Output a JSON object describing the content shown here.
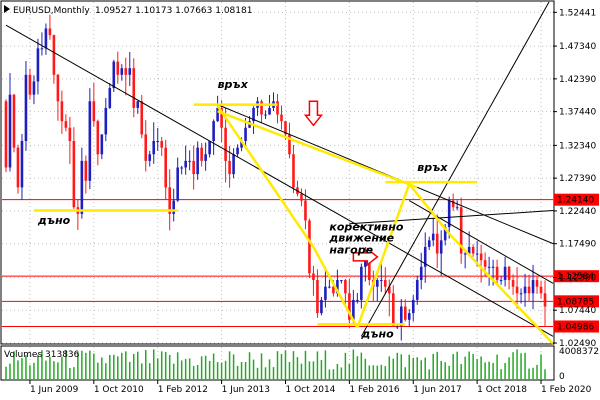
{
  "header": {
    "symbol": "EURUSD,Monthly",
    "ohlc": "1.09527 1.10173 1.07663 1.08181"
  },
  "volume_label": "Volumes 313836",
  "colors": {
    "bull": "#1f1fbf",
    "bear": "#ff1a1a",
    "annotation": "#ffea00",
    "trend": "#000000",
    "hline": "#ff0000",
    "grid": "#c0c0c0",
    "volume": "#22aa22"
  },
  "chart_data": {
    "type": "candlestick",
    "title": "EURUSD,Monthly",
    "ylim": [
      1.0249,
      1.54
    ],
    "y_ticks": [
      "1.52441",
      "1.47340",
      "1.42390",
      "1.37440",
      "1.32340",
      "1.27390",
      "1.22440",
      "1.17490",
      "1.12390",
      "1.07440",
      "1.02490"
    ],
    "x_ticks": [
      "1 Jun 2009",
      "1 Oct 2010",
      "1 Feb 2012",
      "1 Jun 2013",
      "1 Oct 2014",
      "1 Feb 2016",
      "1 Jun 2017",
      "1 Oct 2018",
      "1 Feb 2020"
    ],
    "x_range": [
      "2008-11",
      "2020-05"
    ],
    "price_levels": [
      {
        "value": 1.2414,
        "label": "1.24140"
      },
      {
        "value": 1.12584,
        "label": "1.12584"
      },
      {
        "value": 1.08785,
        "label": "1.08785"
      },
      {
        "value": 1.04986,
        "label": "1.04986"
      }
    ],
    "volume_axis_max": "4008372",
    "volume_axis_zero": "0",
    "annotations": [
      {
        "text": "връх",
        "date": "2013-05",
        "price": 1.41
      },
      {
        "text": "дъно",
        "date": "2009-08",
        "price": 1.205
      },
      {
        "text": "връх",
        "date": "2017-07",
        "price": 1.285
      },
      {
        "text": "корективно",
        "date": "2015-09",
        "price": 1.195
      },
      {
        "text": "движение",
        "date": "2015-09",
        "price": 1.178
      },
      {
        "text": "нагоре",
        "date": "2015-09",
        "price": 1.16
      },
      {
        "text": "дъно",
        "date": "2016-05",
        "price": 1.033
      }
    ],
    "closes_monthly": [
      1.29,
      1.4,
      1.32,
      1.26,
      1.33,
      1.43,
      1.4,
      1.42,
      1.47,
      1.47,
      1.5,
      1.49,
      1.43,
      1.39,
      1.36,
      1.35,
      1.33,
      1.23,
      1.22,
      1.3,
      1.27,
      1.39,
      1.36,
      1.31,
      1.34,
      1.38,
      1.41,
      1.45,
      1.43,
      1.44,
      1.43,
      1.44,
      1.38,
      1.39,
      1.34,
      1.3,
      1.31,
      1.33,
      1.33,
      1.32,
      1.26,
      1.22,
      1.24,
      1.29,
      1.29,
      1.3,
      1.3,
      1.28,
      1.32,
      1.3,
      1.31,
      1.33,
      1.36,
      1.38,
      1.35,
      1.3,
      1.28,
      1.31,
      1.32,
      1.33,
      1.35,
      1.36,
      1.38,
      1.39,
      1.37,
      1.37,
      1.38,
      1.39,
      1.37,
      1.36,
      1.34,
      1.31,
      1.26,
      1.25,
      1.24,
      1.21,
      1.13,
      1.12,
      1.07,
      1.09,
      1.11,
      1.11,
      1.1,
      1.12,
      1.12,
      1.1,
      1.06,
      1.09,
      1.09,
      1.14,
      1.15,
      1.12,
      1.11,
      1.12,
      1.12,
      1.11,
      1.1,
      1.05,
      1.05,
      1.08,
      1.06,
      1.07,
      1.09,
      1.12,
      1.14,
      1.17,
      1.18,
      1.19,
      1.16,
      1.18,
      1.2,
      1.24,
      1.23,
      1.23,
      1.16,
      1.16,
      1.17,
      1.16,
      1.16,
      1.15,
      1.14,
      1.14,
      1.14,
      1.12,
      1.12,
      1.14,
      1.12,
      1.11,
      1.1,
      1.1,
      1.11,
      1.1,
      1.12,
      1.11,
      1.1,
      1.08
    ]
  }
}
